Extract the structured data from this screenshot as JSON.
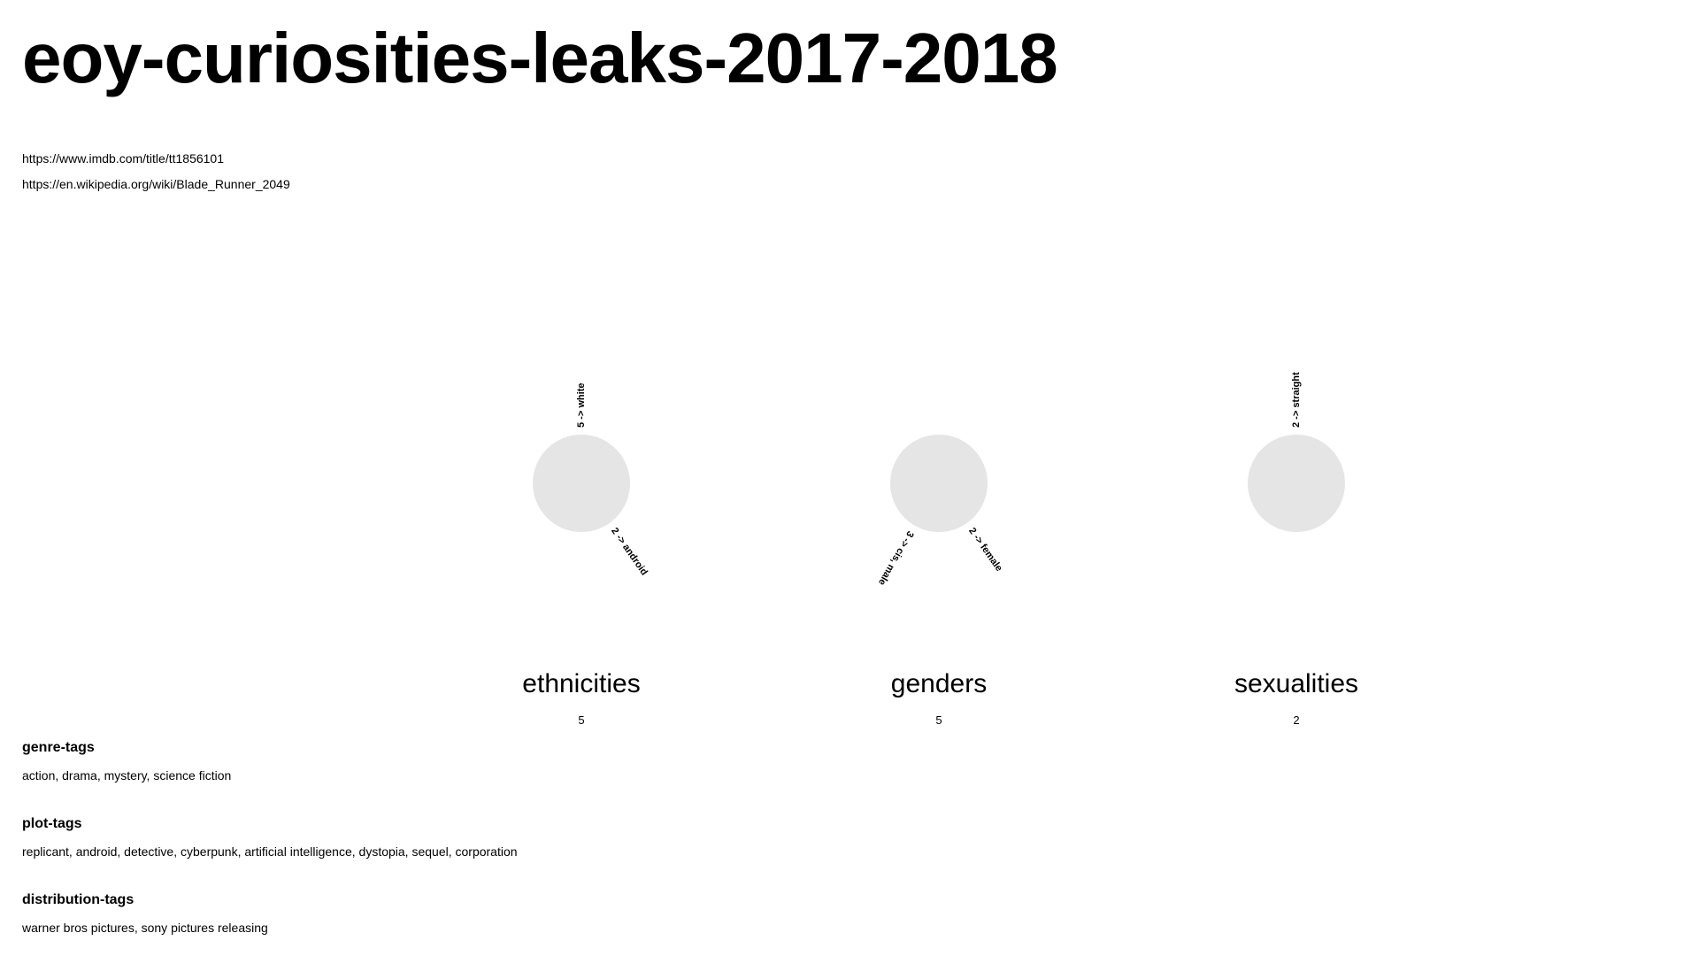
{
  "page": {
    "title": "eoy-curiosities-leaks-2017-2018",
    "links": [
      "https://www.imdb.com/title/tt1856101",
      "https://en.wikipedia.org/wiki/Blade_Runner_2049"
    ]
  },
  "charts": [
    {
      "title": "ethnicities",
      "count": "5",
      "spokes": [
        {
          "label": "5 ->  white",
          "angle": -90
        },
        {
          "label": "2 ->  android",
          "angle": 55
        }
      ]
    },
    {
      "title": "genders",
      "count": "5",
      "spokes": [
        {
          "label": "3 ->  cis, male",
          "angle": 120
        },
        {
          "label": "2 ->  female",
          "angle": 55
        }
      ]
    },
    {
      "title": "sexualities",
      "count": "2",
      "spokes": [
        {
          "label": "2 ->  straight",
          "angle": -90
        }
      ]
    }
  ],
  "tags": {
    "genre": {
      "heading": "genre-tags",
      "values": "action, drama, mystery, science fiction"
    },
    "plot": {
      "heading": "plot-tags",
      "values": "replicant, android, detective, cyberpunk, artificial intelligence, dystopia, sequel, corporation"
    },
    "distribution": {
      "heading": "distribution-tags",
      "values": "warner bros pictures, sony pictures releasing"
    }
  },
  "colors": {
    "circle_fill": "#e5e5e5",
    "text": "#000000",
    "background": "#ffffff"
  }
}
